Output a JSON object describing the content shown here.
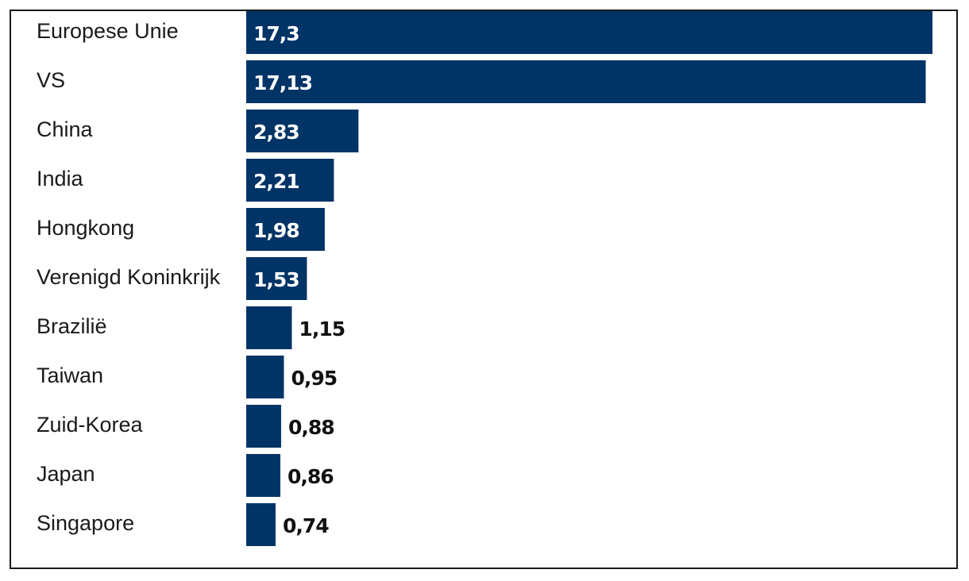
{
  "chart_data": {
    "type": "bar",
    "orientation": "horizontal",
    "title": "",
    "xlabel": "",
    "ylabel": "",
    "categories": [
      "Europese Unie",
      "VS",
      "China",
      "India",
      "Hongkong",
      "Verenigd Koninkrijk",
      "Brazilië",
      "Taiwan",
      "Zuid-Korea",
      "Japan",
      "Singapore"
    ],
    "values": [
      17.3,
      17.13,
      2.83,
      2.21,
      1.98,
      1.53,
      1.15,
      0.95,
      0.88,
      0.86,
      0.74
    ],
    "value_labels": [
      "17,3",
      "17,13",
      "2,83",
      "2,21",
      "1,98",
      "1,53",
      "1,15",
      "0,95",
      "0,88",
      "0,86",
      "0,74"
    ],
    "xlim": [
      0,
      17.3
    ],
    "grid": false,
    "legend": "none",
    "bar_color": "#003366",
    "label_inside_color": "#ffffff",
    "label_outside_color": "#111111"
  }
}
